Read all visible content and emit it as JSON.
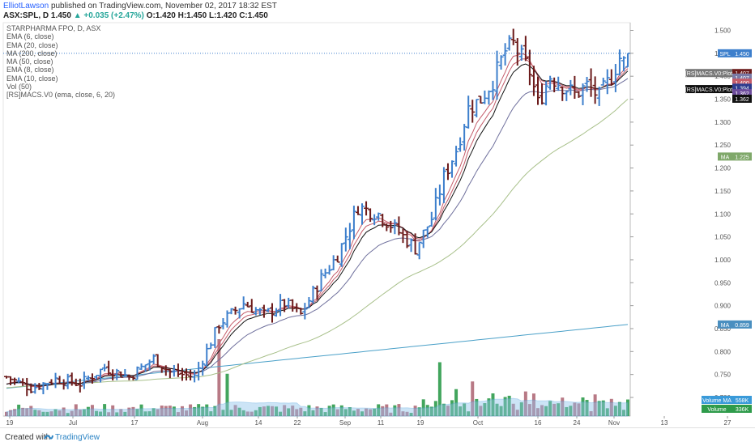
{
  "header": {
    "author": "ElliotLawson",
    "published": "published on TradingView.com, November 02, 2017 18:32 EST",
    "symbol": "ASX:SPL, D",
    "price": "1.450",
    "change": "▲ +0.035 (+2.47%)",
    "ohlc": "O:1.420 H:1.450 L:1.420 C:1.450"
  },
  "legend": [
    "STARPHARMA FPO, D, ASX",
    "EMA (6, close)",
    "EMA (20, close)",
    "MA (200, close)",
    "MA (50, close)",
    "EMA (8, close)",
    "EMA (10, close)",
    "Vol (50)",
    "[RS]MACS.V0 (ema, close, 6, 20)"
  ],
  "footer": {
    "created": "Created with",
    "brand": "TradingView"
  },
  "colors": {
    "up": "#3d7fcc",
    "down": "#6b1a1a",
    "vol_up": "#2e9b4b",
    "vol_down": "#b06a78",
    "ema6": "#c45c6a",
    "ema20": "#6e6f9c",
    "ema10": "#111111",
    "ma200": "#4aa0c8",
    "ma50": "#a8c08a"
  },
  "chart_data": {
    "type": "ohlc",
    "ylim": [
      0.68,
      1.52
    ],
    "y_ticks": [
      "1.500",
      "1.450",
      "1.400",
      "1.350",
      "1.300",
      "1.250",
      "1.200",
      "1.150",
      "1.100",
      "1.050",
      "1.000",
      "0.950",
      "0.900",
      "0.850",
      "0.800",
      "0.750",
      "0.700"
    ],
    "x_ticks": [
      "19",
      "Jul",
      "17",
      "Aug",
      "14",
      "22",
      "Sep",
      "11",
      "19",
      "Oct",
      "16",
      "24",
      "Nov",
      "13",
      "27"
    ],
    "last_price": 1.45,
    "price_labels": [
      {
        "text": "SPL",
        "value": "1.450",
        "y": 1.45,
        "color": "#3d7fcc"
      },
      {
        "text": "",
        "value": "1.407",
        "y": 1.407,
        "color": "#6b1a1a"
      },
      {
        "text": "",
        "value": "1.407",
        "y": 1.397,
        "color": "#7a7aa6"
      },
      {
        "text": "",
        "value": "1.400",
        "y": 1.386,
        "color": "#c45c6a"
      },
      {
        "text": "",
        "value": "1.394",
        "y": 1.375,
        "color": "#2f3c8e"
      },
      {
        "text": "",
        "value": "1.362",
        "y": 1.363,
        "color": "#6e4d9c"
      },
      {
        "text": "",
        "value": "1.362",
        "y": 1.351,
        "color": "#111111"
      },
      {
        "text": "MA",
        "value": "1.225",
        "y": 1.225,
        "color": "#7fa86a"
      },
      {
        "text": "MA",
        "value": "0.859",
        "y": 0.859,
        "color": "#4a8fc0"
      }
    ],
    "study_labels": [
      {
        "text": "[RS]MACS.V0:Plot",
        "y": 1.407,
        "color": "#777777"
      },
      {
        "text": "[RS]MACS.V0:Plot",
        "y": 1.372,
        "color": "#111111"
      }
    ],
    "volume_labels": [
      {
        "text": "Volume MA",
        "value": "558K",
        "color": "#3a9ad9"
      },
      {
        "text": "Volume",
        "value": "336K",
        "color": "#2e9b4b"
      }
    ],
    "key_points": [
      [
        0,
        0.745
      ],
      [
        6,
        0.72
      ],
      [
        12,
        0.74
      ],
      [
        18,
        0.73
      ],
      [
        24,
        0.765
      ],
      [
        30,
        0.745
      ],
      [
        36,
        0.785
      ],
      [
        40,
        0.755
      ],
      [
        46,
        0.745
      ],
      [
        52,
        0.86
      ],
      [
        58,
        0.905
      ],
      [
        63,
        0.88
      ],
      [
        68,
        0.905
      ],
      [
        72,
        0.88
      ],
      [
        77,
        0.96
      ],
      [
        81,
        1.01
      ],
      [
        86,
        1.115
      ],
      [
        91,
        1.1
      ],
      [
        96,
        1.06
      ],
      [
        100,
        1.025
      ],
      [
        104,
        1.09
      ],
      [
        107,
        1.18
      ],
      [
        110,
        1.24
      ],
      [
        113,
        1.33
      ],
      [
        116,
        1.35
      ],
      [
        119,
        1.39
      ],
      [
        122,
        1.455
      ],
      [
        124,
        1.47
      ],
      [
        126,
        1.44
      ],
      [
        128,
        1.41
      ],
      [
        130,
        1.34
      ],
      [
        133,
        1.4
      ],
      [
        136,
        1.38
      ],
      [
        139,
        1.36
      ],
      [
        142,
        1.38
      ],
      [
        145,
        1.355
      ],
      [
        148,
        1.4
      ],
      [
        150,
        1.44
      ],
      [
        151,
        1.43
      ],
      [
        152,
        1.45
      ]
    ],
    "volume_spikes": [
      [
        52,
        1.0
      ],
      [
        54,
        0.55
      ],
      [
        106,
        0.7
      ],
      [
        110,
        0.35
      ],
      [
        114,
        0.45
      ],
      [
        127,
        0.32
      ]
    ]
  }
}
